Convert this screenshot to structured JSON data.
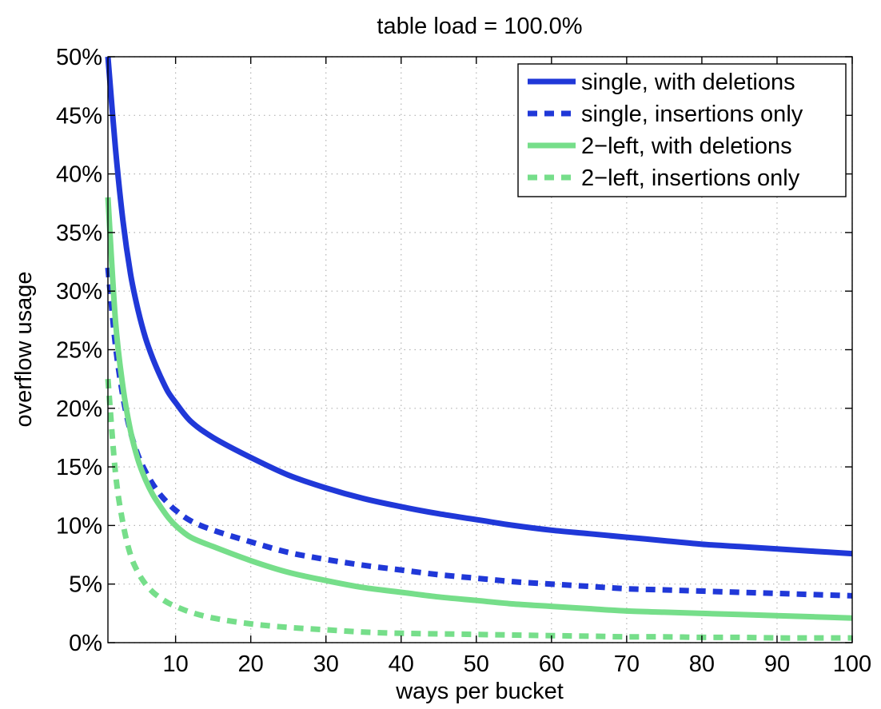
{
  "chart_data": {
    "type": "line",
    "title": "table load = 100.0%",
    "xlabel": "ways per bucket",
    "ylabel": "overflow usage",
    "xlim": [
      1,
      100
    ],
    "ylim": [
      0,
      50
    ],
    "grid": true,
    "legend_position": "top-right",
    "x_ticks": [
      10,
      20,
      30,
      40,
      50,
      60,
      70,
      80,
      90,
      100
    ],
    "x_tick_labels": [
      "10",
      "20",
      "30",
      "40",
      "50",
      "60",
      "70",
      "80",
      "90",
      "100"
    ],
    "y_ticks": [
      0,
      5,
      10,
      15,
      20,
      25,
      30,
      35,
      40,
      45,
      50
    ],
    "y_tick_labels": [
      "0%",
      "5%",
      "10%",
      "15%",
      "20%",
      "25%",
      "30%",
      "35%",
      "40%",
      "45%",
      "50%"
    ],
    "x": [
      1,
      2,
      3,
      4,
      5,
      6,
      7,
      8,
      9,
      10,
      12,
      15,
      20,
      25,
      30,
      35,
      40,
      45,
      50,
      55,
      60,
      65,
      70,
      75,
      80,
      85,
      90,
      95,
      100
    ],
    "series": [
      {
        "name": "single, with deletions",
        "color": "#2038d8",
        "style": "solid",
        "values": [
          50.0,
          42.2,
          36.0,
          31.5,
          28.4,
          26.0,
          24.2,
          22.7,
          21.4,
          20.5,
          18.9,
          17.5,
          15.8,
          14.3,
          13.2,
          12.3,
          11.6,
          11.0,
          10.5,
          10.0,
          9.6,
          9.3,
          9.0,
          8.7,
          8.4,
          8.2,
          8.0,
          7.8,
          7.6
        ]
      },
      {
        "name": "single, insertions only",
        "color": "#2038d8",
        "style": "dashed",
        "values": [
          32.0,
          25.4,
          21.0,
          18.0,
          16.0,
          14.6,
          13.5,
          12.6,
          11.9,
          11.3,
          10.4,
          9.6,
          8.6,
          7.7,
          7.1,
          6.6,
          6.2,
          5.8,
          5.5,
          5.2,
          5.0,
          4.8,
          4.6,
          4.5,
          4.4,
          4.3,
          4.2,
          4.1,
          4.0
        ]
      },
      {
        "name": "2−left, with deletions",
        "color": "#76de8a",
        "style": "solid",
        "values": [
          38.0,
          27.5,
          21.8,
          18.1,
          15.6,
          13.9,
          12.6,
          11.6,
          10.7,
          10.0,
          9.0,
          8.2,
          7.0,
          6.0,
          5.3,
          4.7,
          4.3,
          3.9,
          3.6,
          3.3,
          3.1,
          2.9,
          2.7,
          2.6,
          2.5,
          2.4,
          2.3,
          2.2,
          2.1
        ]
      },
      {
        "name": "2−left, insertions only",
        "color": "#76de8a",
        "style": "dashed",
        "values": [
          22.5,
          14.5,
          10.2,
          7.5,
          6.0,
          5.0,
          4.3,
          3.8,
          3.4,
          3.1,
          2.6,
          2.1,
          1.6,
          1.3,
          1.1,
          0.9,
          0.8,
          0.75,
          0.7,
          0.65,
          0.6,
          0.55,
          0.5,
          0.5,
          0.45,
          0.45,
          0.4,
          0.4,
          0.4
        ]
      }
    ]
  }
}
